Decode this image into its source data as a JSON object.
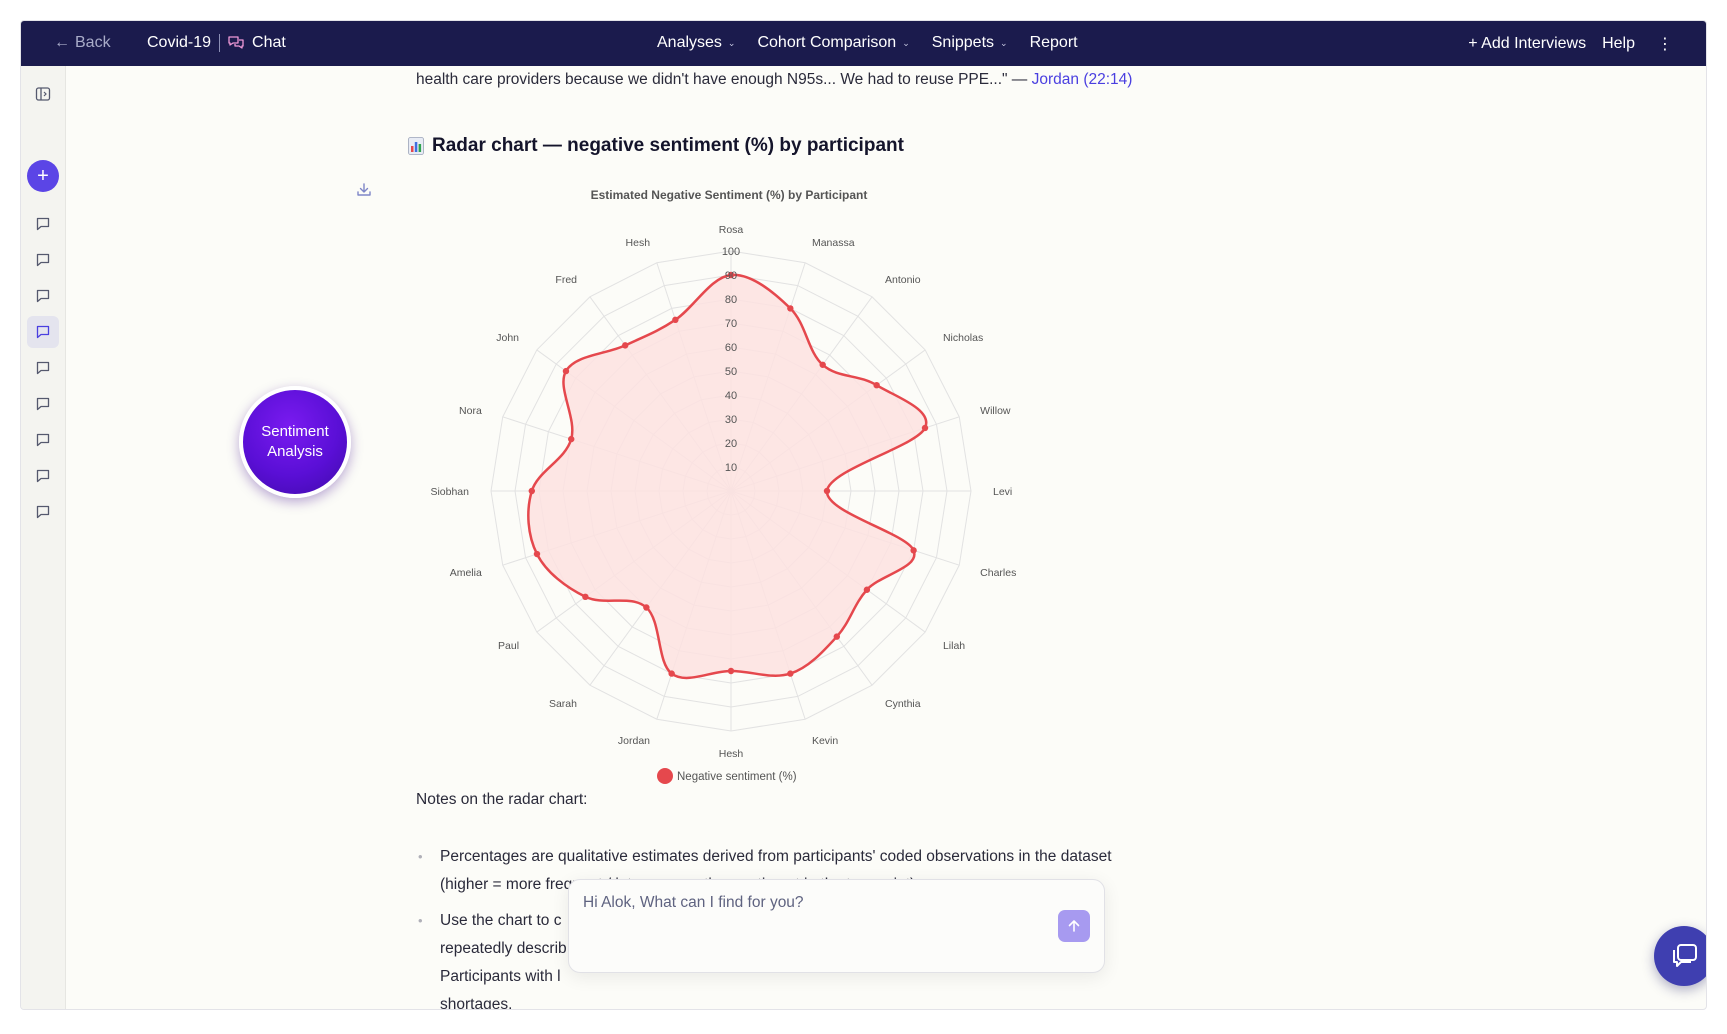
{
  "topbar": {
    "back_label": "Back",
    "project": "Covid-19",
    "section": "Chat",
    "nav": [
      {
        "label": "Analyses",
        "has_menu": true
      },
      {
        "label": "Cohort Comparison",
        "has_menu": true
      },
      {
        "label": "Snippets",
        "has_menu": true
      },
      {
        "label": "Report",
        "has_menu": false
      }
    ],
    "add_interviews": "+ Add Interviews",
    "help": "Help"
  },
  "sidebar": {
    "chat_items": 9,
    "active_index": 3
  },
  "badge": {
    "line1": "Sentiment",
    "line2": "Analysis"
  },
  "content": {
    "quote_text": "health care providers because we didn't have enough N95s... We had to reuse PPE...\" —",
    "quote_link": "Jordan (22:14)",
    "heading": "Radar chart — negative sentiment (%) by participant",
    "notes_title": "Notes on the radar chart:",
    "bullets": [
      {
        "line1": "Percentages are qualitative estimates derived from participants' coded observations in the dataset",
        "line2": "(higher = more frequent / intense negative sentiment in the transcript)."
      },
      {
        "line1": "Use the chart to c",
        "line2": "repeatedly describ",
        "line3": "Participants with l",
        "line4": "shortages."
      }
    ]
  },
  "chat_input": {
    "placeholder": "Hi Alok, What can I find for you?",
    "value": ""
  },
  "chart_data": {
    "type": "radar",
    "title": "Estimated Negative Sentiment (%) by Participant",
    "categories": [
      "Rosa",
      "Manassa",
      "Antonio",
      "Nicholas",
      "Willow",
      "Levi",
      "Charles",
      "Lilah",
      "Cynthia",
      "Kevin",
      "Hesh",
      "Jordan",
      "Sarah",
      "Paul",
      "Amelia",
      "Siobhan",
      "Nora",
      "John",
      "Fred",
      "Hesh"
    ],
    "series": [
      {
        "name": "Negative sentiment (%)",
        "values": [
          90,
          80,
          65,
          75,
          85,
          40,
          80,
          70,
          75,
          80,
          75,
          80,
          60,
          75,
          85,
          83,
          70,
          85,
          75,
          75
        ]
      }
    ],
    "rlim": [
      0,
      100
    ],
    "ticks": [
      10,
      20,
      30,
      40,
      50,
      60,
      70,
      80,
      90,
      100
    ],
    "legend": "bottom",
    "color": "#e5484d",
    "fill": "#fde2e0"
  }
}
